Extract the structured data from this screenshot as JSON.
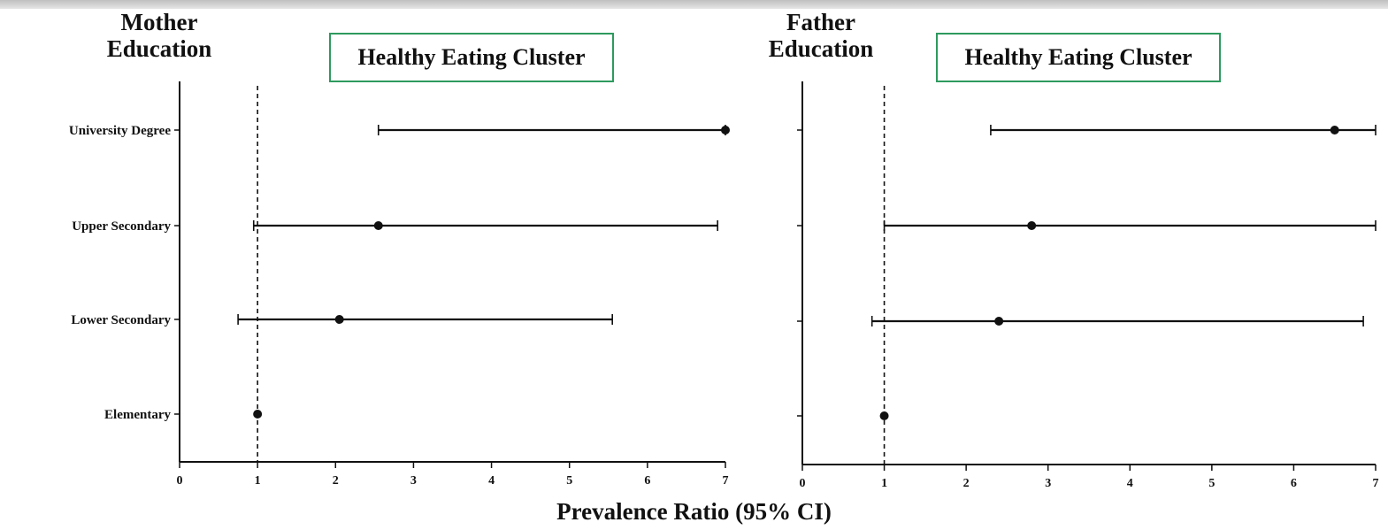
{
  "chart_data": [
    {
      "type": "forest",
      "panel_label": "Mother\nEducation",
      "title": "Healthy Eating Cluster",
      "categories": [
        "University Degree",
        "Upper Secondary",
        "Lower Secondary",
        "Elementary"
      ],
      "estimates": [
        7.0,
        2.55,
        2.05,
        1.0
      ],
      "ci_lower": [
        2.55,
        0.95,
        0.75,
        1.0
      ],
      "ci_upper": [
        7.0,
        6.9,
        5.55,
        1.0
      ],
      "x_ticks": [
        0,
        1,
        2,
        3,
        4,
        5,
        6,
        7
      ],
      "xlim": [
        0,
        7
      ],
      "reference_line": 1,
      "show_y_tick_labels": true
    },
    {
      "type": "forest",
      "panel_label": "Father\nEducation",
      "title": "Healthy Eating Cluster",
      "categories": [
        "University Degree",
        "Upper Secondary",
        "Lower Secondary",
        "Elementary"
      ],
      "estimates": [
        6.5,
        2.8,
        2.4,
        1.0
      ],
      "ci_lower": [
        2.3,
        1.0,
        0.85,
        1.0
      ],
      "ci_upper": [
        7.0,
        7.0,
        6.85,
        1.0
      ],
      "x_ticks": [
        0,
        1,
        2,
        3,
        4,
        5,
        6,
        7
      ],
      "xlim": [
        0,
        7
      ],
      "reference_line": 1,
      "show_y_tick_labels": false
    }
  ],
  "xlabel": "Prevalence Ratio (95% CI)",
  "colors": {
    "box_border": "#2e9a5e",
    "ink": "#111111"
  }
}
